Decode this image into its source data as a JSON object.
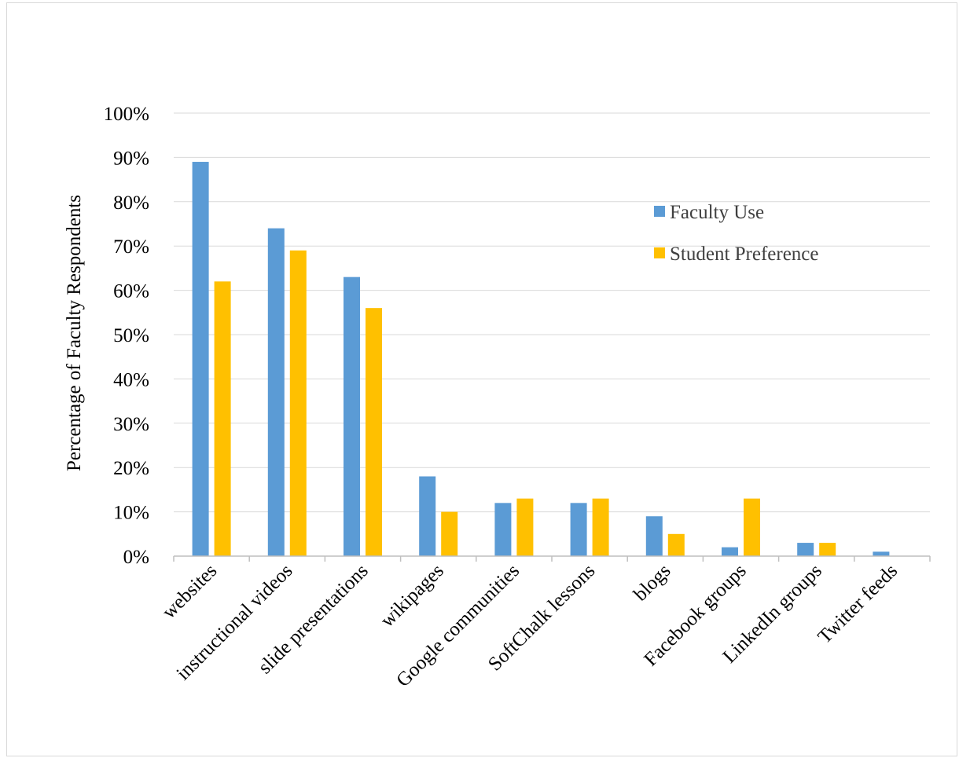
{
  "chart_data": {
    "type": "bar",
    "title": "",
    "xlabel": "",
    "ylabel": "Percentage of Faculty Respondents",
    "ylim": [
      0,
      100
    ],
    "yticks": [
      "0%",
      "10%",
      "20%",
      "30%",
      "40%",
      "50%",
      "60%",
      "70%",
      "80%",
      "90%",
      "100%"
    ],
    "categories": [
      "websites",
      "instructional videos",
      "slide presentations",
      "wikipages",
      "Google communities",
      "SoftChalk lessons",
      "blogs",
      "Facebook groups",
      "LinkedIn groups",
      "Twitter feeds"
    ],
    "series": [
      {
        "name": "Faculty Use",
        "color": "#5b9bd5",
        "values": [
          89,
          74,
          63,
          18,
          12,
          12,
          9,
          2,
          3,
          1
        ]
      },
      {
        "name": "Student Preference",
        "color": "#ffc000",
        "values": [
          62,
          69,
          56,
          10,
          13,
          13,
          5,
          13,
          3,
          0
        ]
      }
    ],
    "grid": true,
    "legend_position": "right"
  }
}
